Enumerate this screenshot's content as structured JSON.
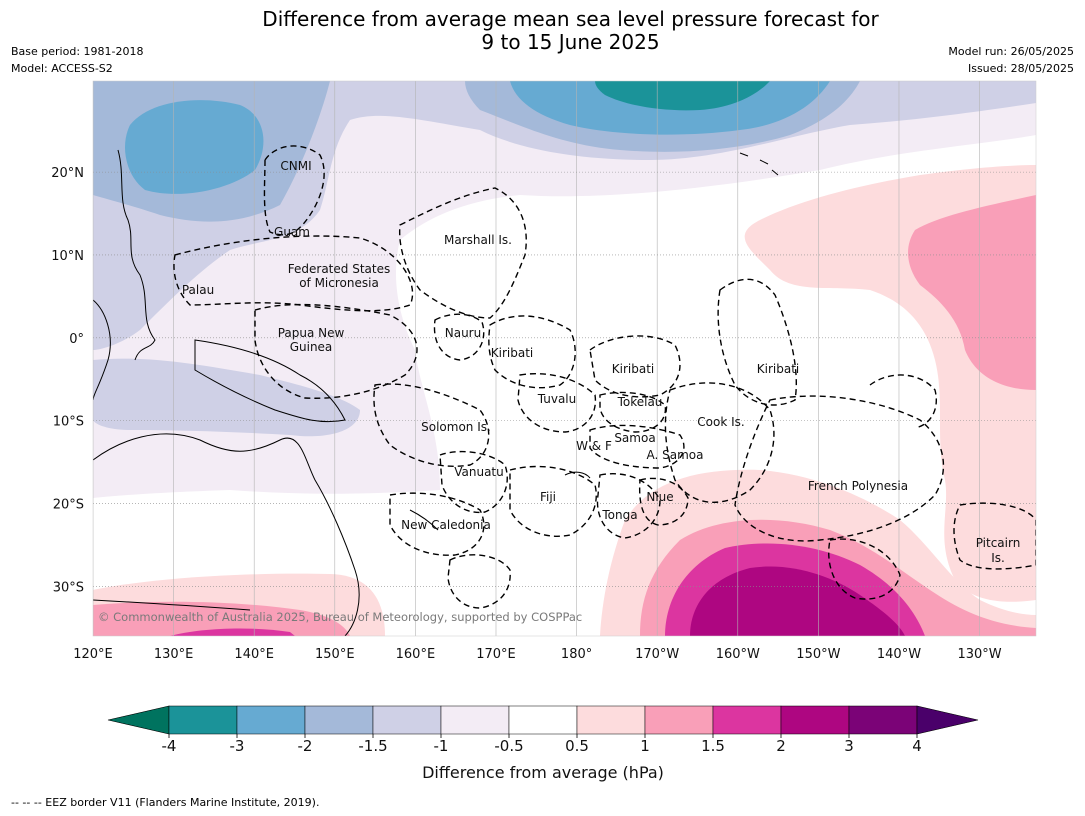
{
  "title_line1": "Difference from average mean sea level pressure forecast for",
  "title_line2": "9 to 15 June 2025",
  "meta": {
    "base_period": "Base period: 1981-2018",
    "model": "Model: ACCESS-S2",
    "model_run": "Model run: 26/05/2025",
    "issued": "Issued: 28/05/2025"
  },
  "map": {
    "lon_range": [
      120,
      237
    ],
    "lat_range": [
      -36,
      31
    ],
    "lon_ticks": [
      "120°E",
      "130°E",
      "140°E",
      "150°E",
      "160°E",
      "170°E",
      "180°",
      "170°W",
      "160°W",
      "150°W",
      "140°W",
      "130°W"
    ],
    "lat_ticks": [
      "20°N",
      "10°N",
      "0°",
      "10°S",
      "20°S",
      "30°S"
    ],
    "region_labels": {
      "cnmi": "CNMI",
      "guam": "Guam",
      "marshall": "Marshall Is.",
      "fsm1": "Federated States",
      "fsm2": "of Micronesia",
      "palau": "Palau",
      "png1": "Papua New",
      "png2": "Guinea",
      "nauru": "Nauru",
      "kiribati1": "Kiribati",
      "kiribati2": "Kiribati",
      "kiribati3": "Kiribati",
      "tuvalu": "Tuvalu",
      "tokelau": "Tokelau",
      "cook": "Cook Is.",
      "solomon": "Solomon Is.",
      "wf": "W & F",
      "samoa": "Samoa",
      "asamoa": "A. Samoa",
      "vanuatu": "Vanuatu",
      "fiji": "Fiji",
      "niue": "Niue",
      "tonga": "Tonga",
      "frenchpoly": "French Polynesia",
      "newcal": "New Caledonia",
      "pitcairn1": "Pitcairn",
      "pitcairn2": "Is."
    },
    "copyright": "© Commonwealth of Australia 2025, Bureau of Meteorology, supported by COSPPac"
  },
  "colorbar": {
    "ticks": [
      "-4",
      "-3",
      "-2",
      "-1.5",
      "-1",
      "-0.5",
      "0.5",
      "1",
      "1.5",
      "2",
      "3",
      "4"
    ],
    "colors": [
      "#1b9399",
      "#66aad2",
      "#a4b9d9",
      "#cfd0e6",
      "#f3ecf5",
      "#ffffff",
      "#fddcdd",
      "#f99fb8",
      "#dc35a0",
      "#ae0681",
      "#7b0377"
    ],
    "under_color": "#00735f",
    "over_color": "#4a006a",
    "label": "Difference from average (hPa)"
  },
  "footnote": "--  --  -- EEZ border V11 (Flanders Marine Institute, 2019)."
}
